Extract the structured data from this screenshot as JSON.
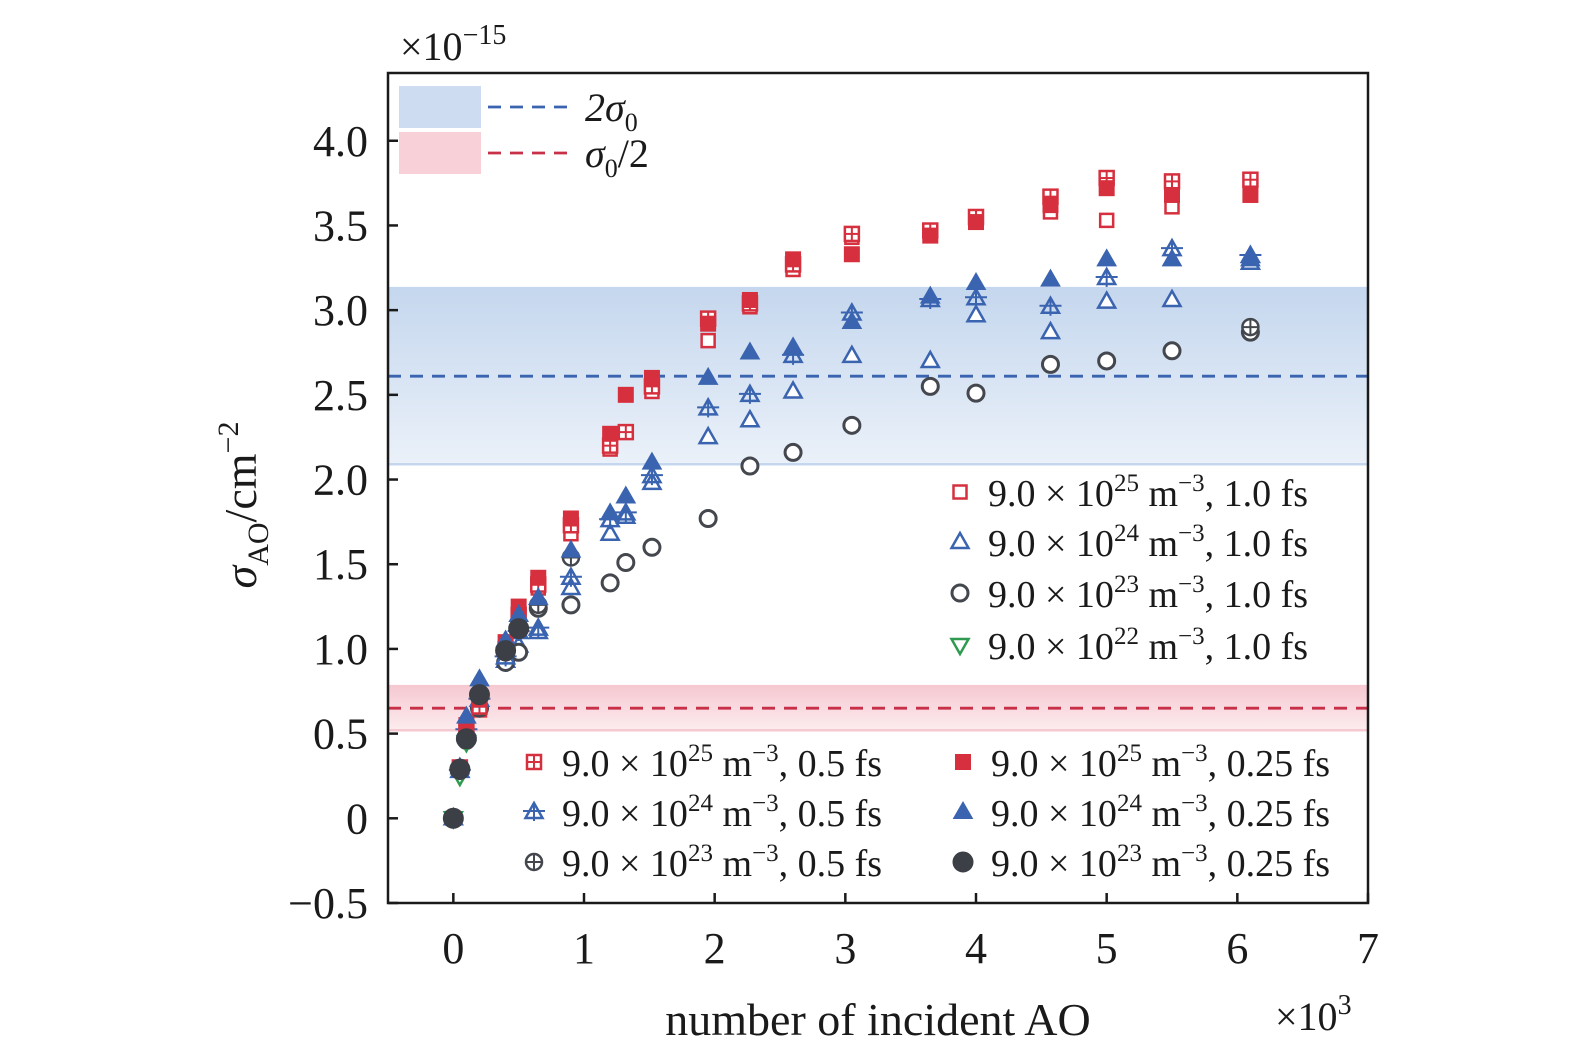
{
  "chart_data": {
    "type": "scatter",
    "title": "",
    "xlabel": "number of incident AO",
    "x_multiplier": "×10",
    "x_multiplier_exp": "3",
    "ylabel_main": "σ",
    "ylabel_sub": "AO",
    "ylabel_unit": "/cm",
    "ylabel_exp": "−2",
    "y_multiplier": "×10",
    "y_multiplier_exp": "−15",
    "xlim": [
      -0.5,
      7
    ],
    "ylim": [
      -0.5,
      4.4
    ],
    "x_ticks": [
      {
        "v": 0,
        "label": "0"
      },
      {
        "v": 1,
        "label": "1"
      },
      {
        "v": 2,
        "label": "2"
      },
      {
        "v": 3,
        "label": "3"
      },
      {
        "v": 4,
        "label": "4"
      },
      {
        "v": 5,
        "label": "5"
      },
      {
        "v": 6,
        "label": "6"
      },
      {
        "v": 7,
        "label": "7"
      }
    ],
    "y_ticks": [
      {
        "v": -0.5,
        "label": "−0.5"
      },
      {
        "v": 0,
        "label": "0"
      },
      {
        "v": 0.5,
        "label": "0.5"
      },
      {
        "v": 1.0,
        "label": "1.0"
      },
      {
        "v": 1.5,
        "label": "1.5"
      },
      {
        "v": 2.0,
        "label": "2.0"
      },
      {
        "v": 2.5,
        "label": "2.5"
      },
      {
        "v": 3.0,
        "label": "3.0"
      },
      {
        "v": 3.5,
        "label": "3.5"
      },
      {
        "v": 4.0,
        "label": "4.0"
      }
    ],
    "bands": [
      {
        "name": "2σ0",
        "label_main": "2σ",
        "label_sub": "0",
        "label_tail": "",
        "y_low": 2.09,
        "y_high": 3.13,
        "line_y": 2.61,
        "color": "#3a64b0",
        "fill": "#c5d7ee"
      },
      {
        "name": "σ0/2",
        "label_main": "σ",
        "label_sub": "0",
        "label_tail": "/2",
        "y_low": 0.52,
        "y_high": 0.78,
        "line_y": 0.65,
        "color": "#c83048",
        "fill": "#f6c9d1"
      }
    ],
    "series": [
      {
        "name": "9.0 × 10^25 m^−3, 1.0 fs",
        "density": "9.0 × 10",
        "exp": "25",
        "unit": " m",
        "unit_exp": "−3",
        "dt": ", 1.0 fs",
        "marker": "square-open",
        "color": "#d6303f",
        "x": [
          0,
          0.1,
          0.2,
          0.4,
          0.5,
          0.65,
          0.9,
          1.2,
          1.32,
          1.52,
          1.95,
          2.27,
          2.6,
          3.05,
          3.65,
          4.0,
          4.57,
          5.0,
          5.5,
          6.1
        ],
        "y": [
          0,
          0.52,
          0.64,
          0.98,
          1.18,
          1.36,
          1.68,
          2.18,
          2.28,
          2.52,
          2.82,
          3.02,
          3.24,
          3.43,
          3.44,
          3.54,
          3.58,
          3.53,
          3.61,
          3.72
        ]
      },
      {
        "name": "9.0 × 10^24 m^−3, 1.0 fs",
        "density": "9.0 × 10",
        "exp": "24",
        "unit": " m",
        "unit_exp": "−3",
        "dt": ", 1.0 fs",
        "marker": "triangle-open",
        "color": "#3a64b0",
        "x": [
          0,
          0.1,
          0.2,
          0.4,
          0.5,
          0.65,
          0.9,
          1.2,
          1.32,
          1.52,
          1.95,
          2.27,
          2.6,
          3.05,
          3.65,
          4.0,
          4.57,
          5.0,
          5.5,
          6.1
        ],
        "y": [
          0,
          0.5,
          0.7,
          0.93,
          1.02,
          1.1,
          1.36,
          1.68,
          1.78,
          1.98,
          2.25,
          2.35,
          2.52,
          2.73,
          2.7,
          2.97,
          2.87,
          3.05,
          3.06,
          3.28
        ]
      },
      {
        "name": "9.0 × 10^23 m^−3, 1.0 fs",
        "density": "9.0 × 10",
        "exp": "23",
        "unit": " m",
        "unit_exp": "−3",
        "dt": ", 1.0 fs",
        "marker": "circle-open",
        "color": "#44474d",
        "x": [
          0,
          0.1,
          0.2,
          0.4,
          0.5,
          0.65,
          0.9,
          1.2,
          1.32,
          1.52,
          1.95,
          2.27,
          2.6,
          3.05,
          3.65,
          4.0,
          4.57,
          5.0,
          5.5,
          6.1
        ],
        "y": [
          0,
          0.46,
          0.65,
          0.92,
          0.98,
          1.24,
          1.26,
          1.39,
          1.51,
          1.6,
          1.77,
          2.08,
          2.16,
          2.32,
          2.55,
          2.51,
          2.68,
          2.7,
          2.76,
          2.87
        ]
      },
      {
        "name": "9.0 × 10^22 m^−3, 1.0 fs",
        "density": "9.0 × 10",
        "exp": "22",
        "unit": " m",
        "unit_exp": "−3",
        "dt": ", 1.0 fs",
        "marker": "triangle-down-open",
        "color": "#2e9a4f",
        "x": [
          0,
          0.05,
          0.1
        ],
        "y": [
          0,
          0.25,
          0.45
        ]
      },
      {
        "name": "9.0 × 10^25 m^−3, 0.5 fs",
        "density": "9.0 × 10",
        "exp": "25",
        "unit": " m",
        "unit_exp": "−3",
        "dt": ", 0.5 fs",
        "marker": "square-plus",
        "color": "#d6303f",
        "x": [
          0.05,
          0.1,
          0.2,
          0.4,
          0.5,
          0.65,
          0.9,
          1.2,
          1.32,
          1.52,
          1.95,
          2.27,
          2.6,
          3.05,
          3.65,
          4.0,
          4.57,
          5.0,
          5.5,
          6.1
        ],
        "y": [
          0.3,
          0.53,
          0.66,
          1.0,
          1.2,
          1.38,
          1.73,
          2.2,
          2.28,
          2.55,
          2.95,
          3.04,
          3.27,
          3.45,
          3.47,
          3.55,
          3.67,
          3.78,
          3.76,
          3.77
        ]
      },
      {
        "name": "9.0 × 10^24 m^−3, 0.5 fs",
        "density": "9.0 × 10",
        "exp": "24",
        "unit": " m",
        "unit_exp": "−3",
        "dt": ", 0.5 fs",
        "marker": "triangle-plus",
        "color": "#3a64b0",
        "x": [
          0.05,
          0.1,
          0.2,
          0.4,
          0.5,
          0.65,
          0.9,
          1.2,
          1.32,
          1.52,
          1.95,
          2.27,
          2.6,
          3.05,
          3.65,
          4.0,
          4.57,
          5.0,
          5.5,
          6.1
        ],
        "y": [
          0.28,
          0.52,
          0.7,
          0.95,
          1.1,
          1.12,
          1.42,
          1.76,
          1.8,
          2.02,
          2.42,
          2.5,
          2.73,
          2.98,
          3.06,
          3.07,
          3.02,
          3.19,
          3.36,
          3.32
        ]
      },
      {
        "name": "9.0 × 10^23 m^−3, 0.5 fs",
        "density": "9.0 × 10",
        "exp": "23",
        "unit": " m",
        "unit_exp": "−3",
        "dt": ", 0.5 fs",
        "marker": "circle-plus",
        "color": "#44474d",
        "x": [
          0.05,
          0.1,
          0.2,
          0.4,
          0.5,
          0.65,
          0.9,
          6.1
        ],
        "y": [
          0.28,
          0.48,
          0.72,
          0.98,
          1.12,
          1.26,
          1.54,
          2.9
        ]
      },
      {
        "name": "9.0 × 10^25 m^−3, 0.25 fs",
        "density": "9.0 × 10",
        "exp": "25",
        "unit": " m",
        "unit_exp": "−3",
        "dt": ", 0.25 fs",
        "marker": "square-filled",
        "color": "#d6303f",
        "x": [
          0.05,
          0.1,
          0.2,
          0.4,
          0.5,
          0.65,
          0.9,
          1.2,
          1.32,
          1.52,
          1.95,
          2.27,
          2.6,
          3.05,
          3.65,
          4.0,
          4.57,
          5.0,
          5.5,
          6.1
        ],
        "y": [
          0.3,
          0.55,
          0.7,
          1.04,
          1.25,
          1.42,
          1.77,
          2.27,
          2.5,
          2.6,
          2.92,
          3.06,
          3.3,
          3.33,
          3.44,
          3.52,
          3.62,
          3.72,
          3.68,
          3.68
        ]
      },
      {
        "name": "9.0 × 10^24 m^−3, 0.25 fs",
        "density": "9.0 × 10",
        "exp": "24",
        "unit": " m",
        "unit_exp": "−3",
        "dt": ", 0.25 fs",
        "marker": "triangle-filled",
        "color": "#3a64b0",
        "x": [
          0.05,
          0.1,
          0.2,
          0.4,
          0.5,
          0.65,
          0.9,
          1.2,
          1.32,
          1.52,
          1.95,
          2.27,
          2.6,
          3.05,
          3.65,
          4.0,
          4.57,
          5.0,
          5.5,
          6.1
        ],
        "y": [
          0.3,
          0.6,
          0.82,
          1.05,
          1.2,
          1.3,
          1.58,
          1.8,
          1.9,
          2.1,
          2.6,
          2.75,
          2.78,
          2.93,
          3.08,
          3.16,
          3.18,
          3.3,
          3.3,
          3.3
        ]
      },
      {
        "name": "9.0 × 10^23 m^−3, 0.25 fs",
        "density": "9.0 × 10",
        "exp": "23",
        "unit": " m",
        "unit_exp": "−3",
        "dt": ", 0.25 fs",
        "marker": "circle-filled",
        "color": "#3c3f45",
        "x": [
          0,
          0.05,
          0.1,
          0.2,
          0.4,
          0.5
        ],
        "y": [
          0,
          0.29,
          0.47,
          0.73,
          0.99,
          1.12
        ]
      }
    ]
  }
}
